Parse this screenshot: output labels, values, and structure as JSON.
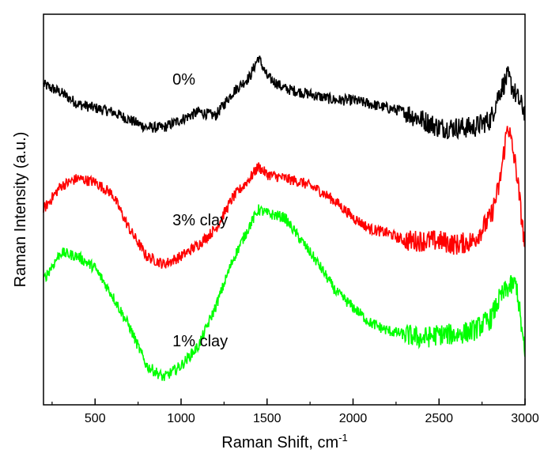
{
  "chart_data": {
    "type": "line",
    "xlabel": "Raman Shift, cm",
    "xlabel_superscript": "-1",
    "ylabel": "Raman Intensity (a.u.)",
    "xlim": [
      200,
      3000
    ],
    "ylim": [
      0,
      1
    ],
    "x_ticks": [
      500,
      1000,
      1500,
      2000,
      2500,
      3000
    ],
    "y_tick_labels": false,
    "grid": false,
    "legend": "none",
    "series": [
      {
        "name": "0%",
        "color": "#000000",
        "label_at": [
          950,
          0.82
        ],
        "points": [
          [
            200,
            0.82
          ],
          [
            300,
            0.8
          ],
          [
            400,
            0.77
          ],
          [
            500,
            0.76
          ],
          [
            600,
            0.75
          ],
          [
            700,
            0.73
          ],
          [
            800,
            0.71
          ],
          [
            900,
            0.71
          ],
          [
            1000,
            0.73
          ],
          [
            1100,
            0.75
          ],
          [
            1200,
            0.74
          ],
          [
            1300,
            0.8
          ],
          [
            1400,
            0.84
          ],
          [
            1450,
            0.89
          ],
          [
            1500,
            0.84
          ],
          [
            1600,
            0.81
          ],
          [
            1700,
            0.8
          ],
          [
            1800,
            0.79
          ],
          [
            1900,
            0.78
          ],
          [
            2000,
            0.78
          ],
          [
            2100,
            0.77
          ],
          [
            2200,
            0.76
          ],
          [
            2300,
            0.75
          ],
          [
            2400,
            0.73
          ],
          [
            2500,
            0.71
          ],
          [
            2600,
            0.71
          ],
          [
            2700,
            0.71
          ],
          [
            2800,
            0.73
          ],
          [
            2850,
            0.8
          ],
          [
            2900,
            0.84
          ],
          [
            2950,
            0.79
          ],
          [
            3000,
            0.75
          ]
        ]
      },
      {
        "name": "3% clay",
        "color": "#ff0000",
        "label_at": [
          950,
          0.46
        ],
        "points": [
          [
            200,
            0.5
          ],
          [
            300,
            0.56
          ],
          [
            400,
            0.58
          ],
          [
            500,
            0.57
          ],
          [
            600,
            0.54
          ],
          [
            700,
            0.45
          ],
          [
            800,
            0.38
          ],
          [
            900,
            0.36
          ],
          [
            1000,
            0.38
          ],
          [
            1100,
            0.41
          ],
          [
            1200,
            0.45
          ],
          [
            1300,
            0.53
          ],
          [
            1400,
            0.58
          ],
          [
            1450,
            0.61
          ],
          [
            1500,
            0.59
          ],
          [
            1600,
            0.58
          ],
          [
            1700,
            0.57
          ],
          [
            1800,
            0.55
          ],
          [
            1900,
            0.52
          ],
          [
            2000,
            0.48
          ],
          [
            2100,
            0.45
          ],
          [
            2200,
            0.44
          ],
          [
            2300,
            0.42
          ],
          [
            2400,
            0.42
          ],
          [
            2500,
            0.42
          ],
          [
            2600,
            0.41
          ],
          [
            2700,
            0.42
          ],
          [
            2800,
            0.48
          ],
          [
            2850,
            0.56
          ],
          [
            2900,
            0.72
          ],
          [
            2950,
            0.6
          ],
          [
            3000,
            0.4
          ]
        ]
      },
      {
        "name": "1% clay",
        "color": "#00ff00",
        "label_at": [
          950,
          0.15
        ],
        "points": [
          [
            200,
            0.32
          ],
          [
            300,
            0.39
          ],
          [
            400,
            0.38
          ],
          [
            500,
            0.35
          ],
          [
            600,
            0.28
          ],
          [
            700,
            0.2
          ],
          [
            800,
            0.1
          ],
          [
            900,
            0.07
          ],
          [
            1000,
            0.1
          ],
          [
            1100,
            0.15
          ],
          [
            1200,
            0.25
          ],
          [
            1300,
            0.37
          ],
          [
            1400,
            0.46
          ],
          [
            1450,
            0.5
          ],
          [
            1500,
            0.49
          ],
          [
            1600,
            0.48
          ],
          [
            1700,
            0.42
          ],
          [
            1800,
            0.36
          ],
          [
            1900,
            0.29
          ],
          [
            2000,
            0.25
          ],
          [
            2100,
            0.21
          ],
          [
            2200,
            0.19
          ],
          [
            2300,
            0.18
          ],
          [
            2400,
            0.17
          ],
          [
            2500,
            0.18
          ],
          [
            2600,
            0.18
          ],
          [
            2700,
            0.19
          ],
          [
            2800,
            0.22
          ],
          [
            2850,
            0.27
          ],
          [
            2900,
            0.3
          ],
          [
            2950,
            0.31
          ],
          [
            3000,
            0.12
          ]
        ]
      }
    ]
  }
}
